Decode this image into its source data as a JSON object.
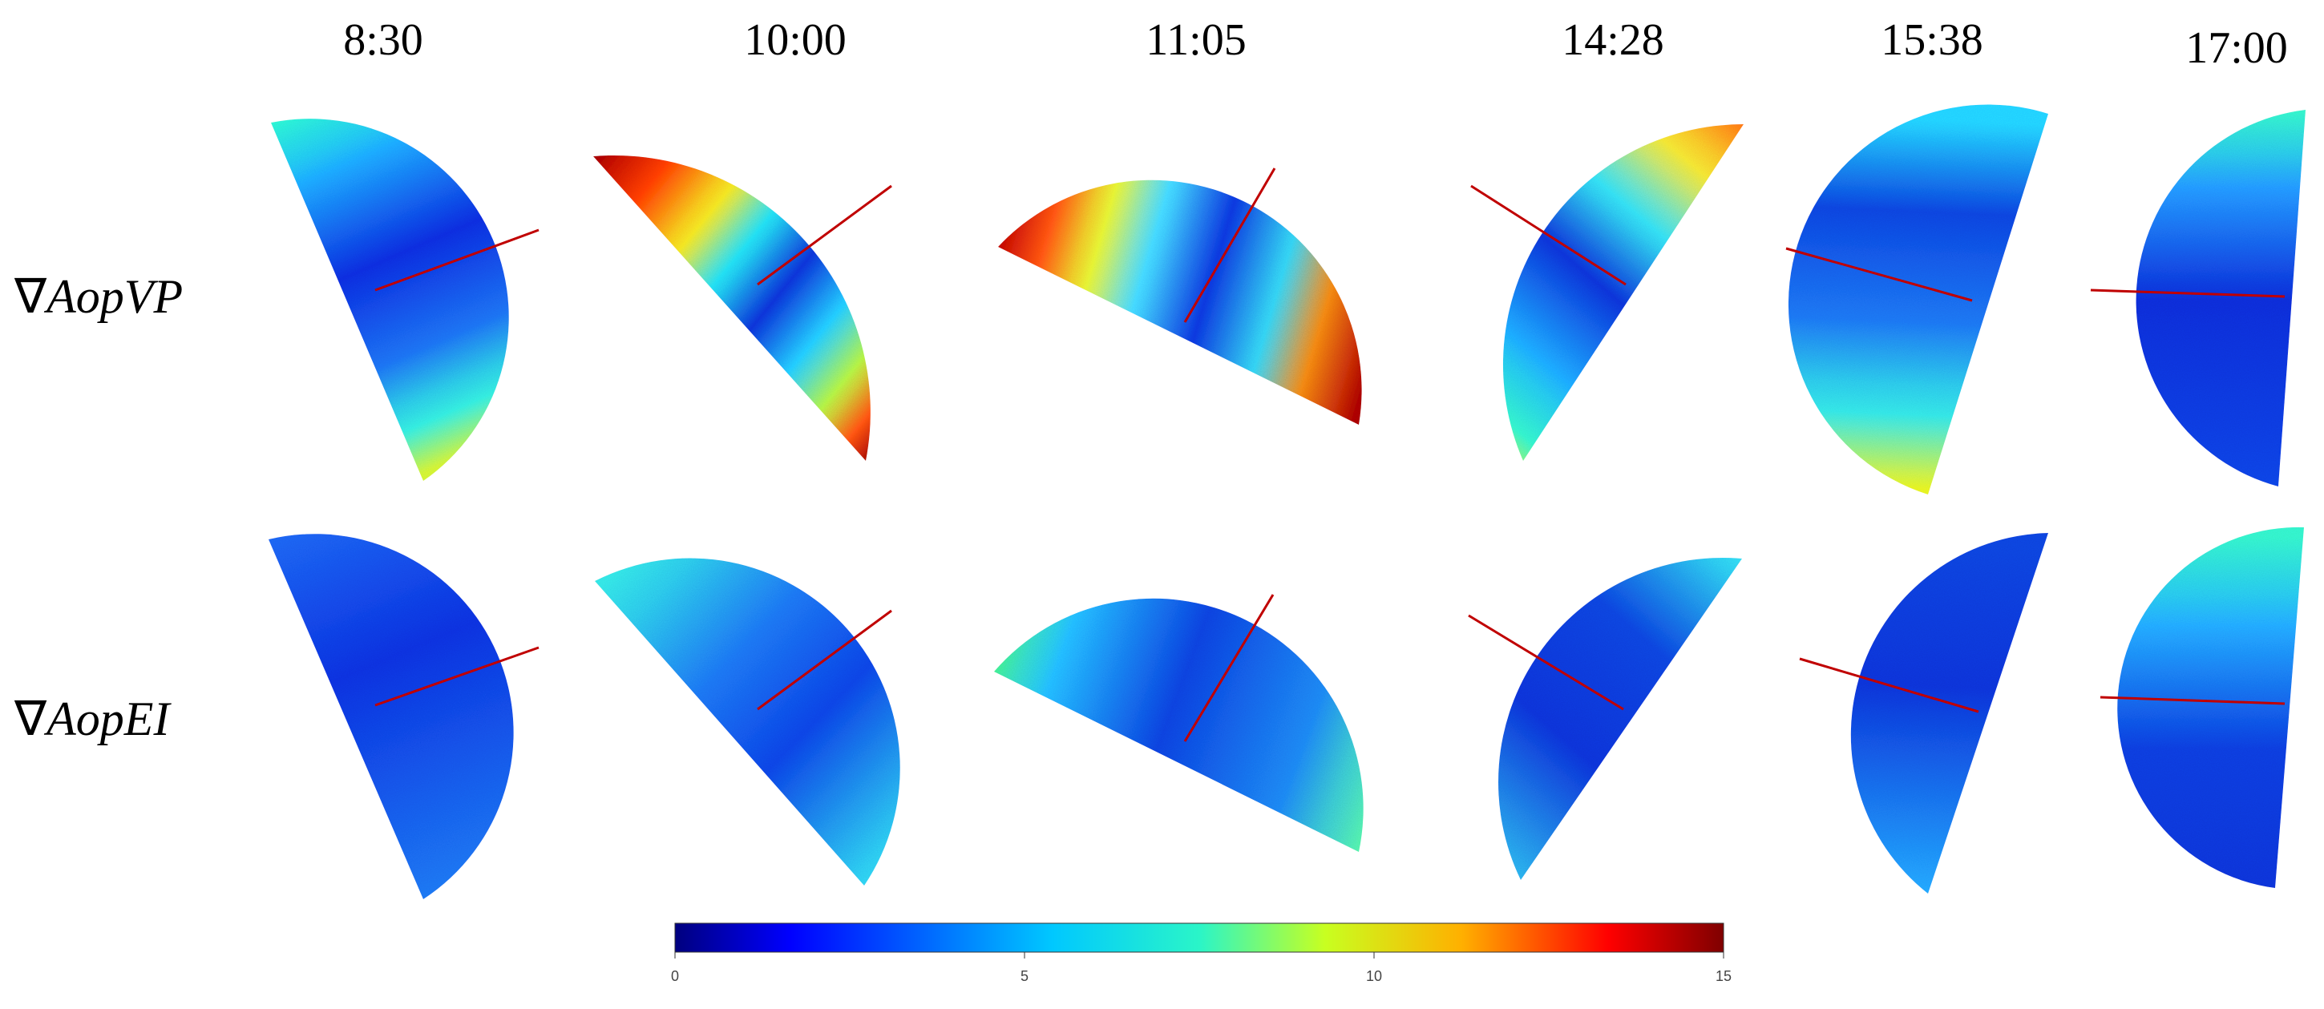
{
  "times": [
    "8:30",
    "10:00",
    "11:05",
    "14:28",
    "15:38",
    "17:00"
  ],
  "rows": [
    {
      "nabla": "∇",
      "symbol": "AopVP"
    },
    {
      "nabla": "∇",
      "symbol": "AopEI"
    }
  ],
  "colorbar": {
    "min": 0,
    "max": 15,
    "ticks": [
      "0",
      "5",
      "10",
      "15"
    ],
    "colormap": "jet"
  },
  "colors": {
    "line": "#c00000",
    "background": "#ffffff"
  }
}
